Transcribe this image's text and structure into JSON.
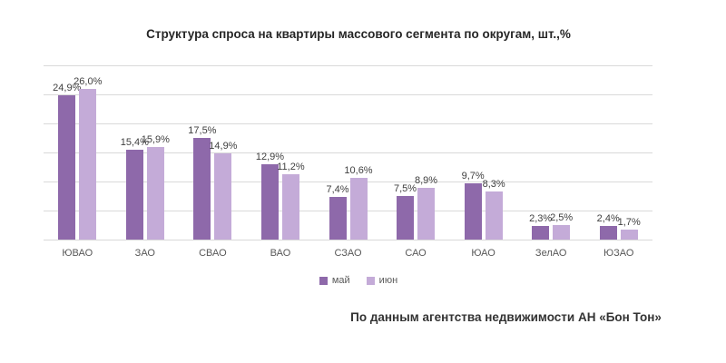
{
  "title": "Структура спроса на квартиры массового сегмента по округам, шт.,%",
  "source": "По данным агентства недвижимости АН «Бон Тон»",
  "colors": {
    "may": "#8e69aa",
    "june": "#c4abd8",
    "grid": "#d9d9d9",
    "value_label": "#404040",
    "category_label": "#595959"
  },
  "chart_data": {
    "type": "bar",
    "title": "Структура спроса на квартиры массового сегмента по округам, шт.,%",
    "categories": [
      "ЮВАО",
      "ЗАО",
      "СВАО",
      "ВАО",
      "СЗАО",
      "САО",
      "ЮАО",
      "ЗелАО",
      "ЮЗАО"
    ],
    "series": [
      {
        "name": "май",
        "color": "#8e69aa",
        "values": [
          24.9,
          15.4,
          17.5,
          12.9,
          7.4,
          7.5,
          9.7,
          2.3,
          2.4
        ]
      },
      {
        "name": "июн",
        "color": "#c4abd8",
        "values": [
          26.0,
          15.9,
          14.9,
          11.2,
          10.6,
          8.9,
          8.3,
          2.5,
          1.7
        ]
      }
    ],
    "value_labels": [
      [
        "24,9%",
        "15,4%",
        "17,5%",
        "12,9%",
        "7,4%",
        "7,5%",
        "9,7%",
        "2,3%",
        "2,4%"
      ],
      [
        "26,0%",
        "15,9%",
        "14,9%",
        "11,2%",
        "10,6%",
        "8,9%",
        "8,3%",
        "2,5%",
        "1,7%"
      ]
    ],
    "xlabel": "",
    "ylabel": "",
    "ylim": [
      0,
      30
    ],
    "grid_step": 5,
    "grid": true,
    "legend_position": "bottom"
  }
}
